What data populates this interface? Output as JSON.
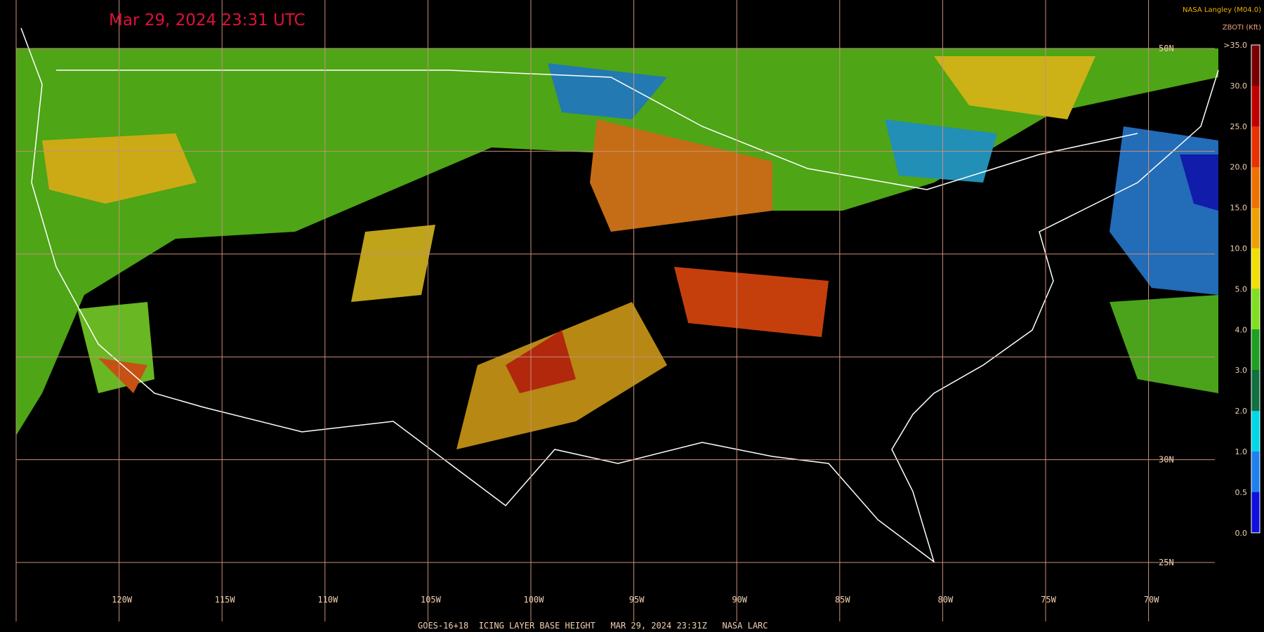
{
  "header": {
    "timestamp": "Mar 29, 2024 23:31 UTC",
    "credit": "NASA Langley (M04.0)",
    "units": "ZBOTI (Kft)"
  },
  "legend": {
    "labels": [
      ">35.0",
      "30.0",
      "25.0",
      "20.0",
      "15.0",
      "10.0",
      "5.0",
      "4.0",
      "3.0",
      "2.0",
      "1.0",
      "0.5",
      "0.0"
    ]
  },
  "map": {
    "lon_labels": [
      "120W",
      "115W",
      "110W",
      "105W",
      "100W",
      "95W",
      "90W",
      "85W",
      "80W",
      "75W",
      "70W"
    ],
    "lat_labels": [
      {
        "name": "50N",
        "row": 0
      },
      {
        "name": "30N",
        "row": 4
      },
      {
        "name": "25N",
        "row": 5
      }
    ]
  },
  "footer": {
    "caption": "GOES-16+18  ICING LAYER BASE HEIGHT   MAR 29, 2024 23:31Z   NASA LARC"
  }
}
